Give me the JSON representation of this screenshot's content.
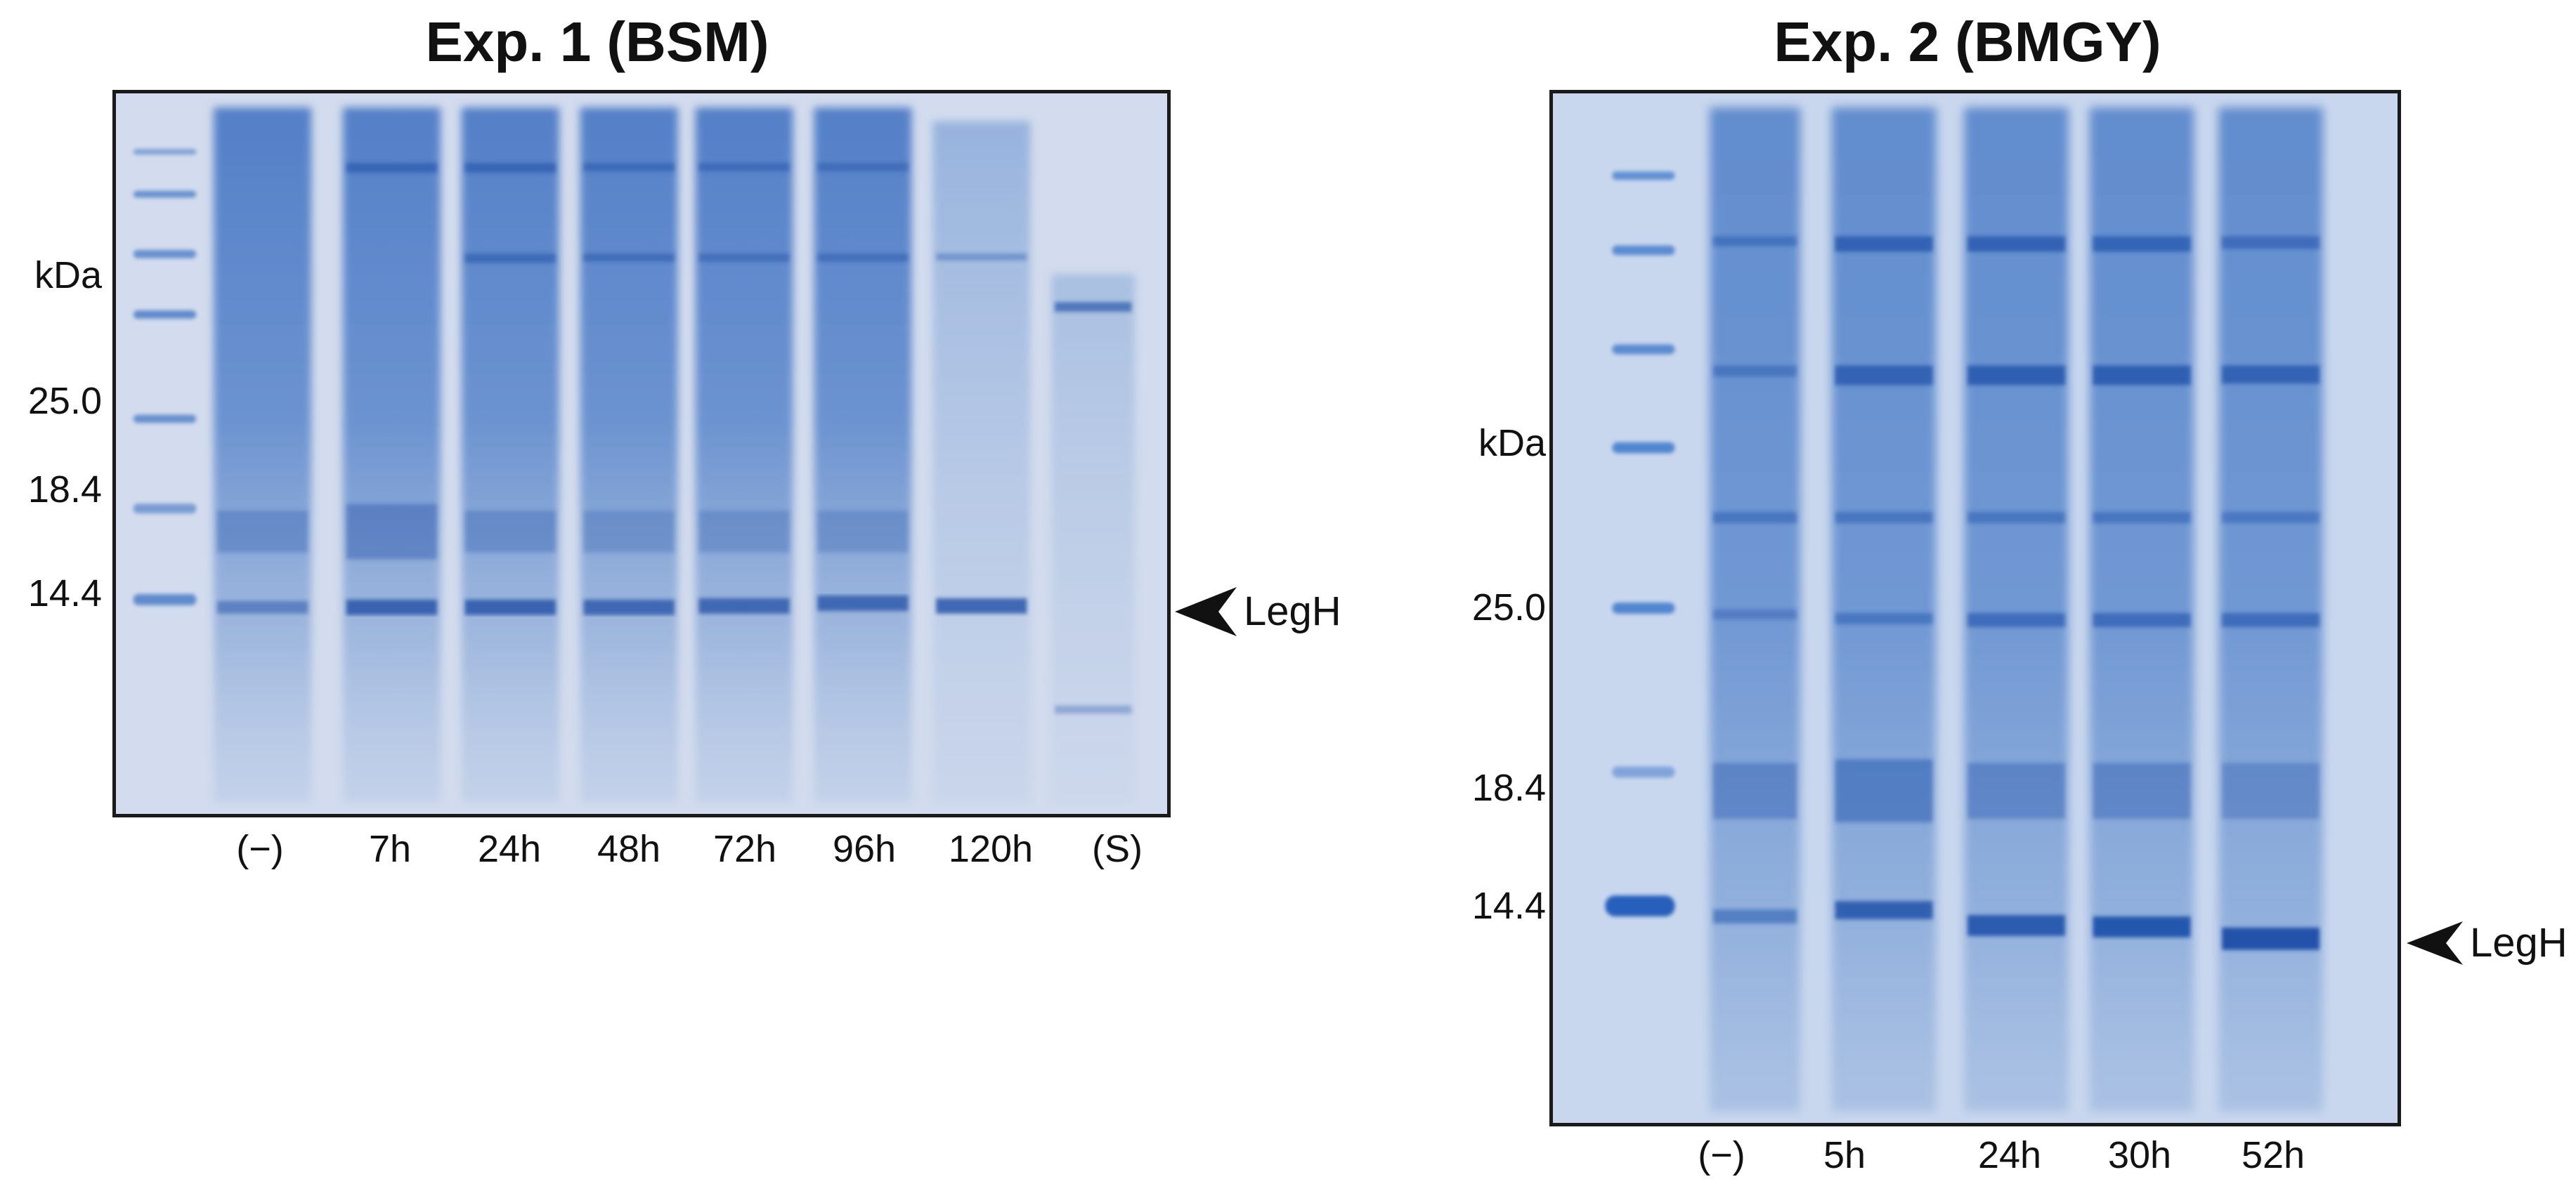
{
  "colors": {
    "gel_background": "#cfd9ec",
    "lane_stain": "#5b82c8",
    "band_dark": "#2d5db2",
    "marker": "#3a72c6"
  },
  "exp1": {
    "title": "Exp. 1 (BSM)",
    "unit": "kDa",
    "marker_labels": [
      "25.0",
      "18.4",
      "14.4"
    ],
    "lanes": [
      "(−)",
      "7h",
      "24h",
      "48h",
      "72h",
      "96h",
      "120h",
      "(S)"
    ],
    "arrow_label": "LegH",
    "arrow_icon": "arrowhead-left-icon"
  },
  "exp2": {
    "title": "Exp. 2 (BMGY)",
    "unit": "kDa",
    "marker_labels": [
      "25.0",
      "18.4",
      "14.4"
    ],
    "lanes": [
      "(−)",
      "5h",
      "24h",
      "30h",
      "52h"
    ],
    "arrow_label": "LegH",
    "arrow_icon": "arrowhead-left-icon"
  }
}
